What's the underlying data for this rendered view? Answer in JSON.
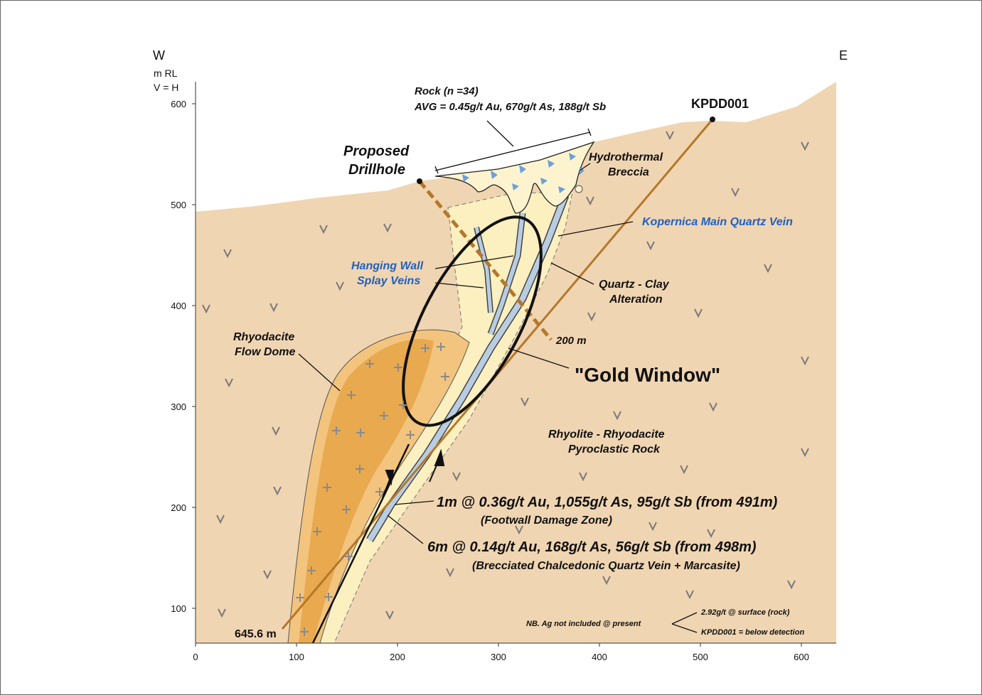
{
  "orientation": {
    "west": "W",
    "east": "E",
    "units": "m RL",
    "scale": "V = H"
  },
  "axes": {
    "x_ticks": [
      0,
      100,
      200,
      300,
      400,
      500,
      600
    ],
    "y_ticks": [
      100,
      200,
      300,
      400,
      500,
      600
    ]
  },
  "labels": {
    "rock_sample": [
      "Rock (n =34)",
      "AVG = 0.45g/t Au, 670g/t As, 188g/t Sb"
    ],
    "kpdd001": "KPDD001",
    "proposed_drillhole": [
      "Proposed",
      "Drillhole"
    ],
    "hydrothermal_breccia": [
      "Hydrothermal",
      "Breccia"
    ],
    "main_vein": "Kopernica Main Quartz Vein",
    "splay_veins": [
      "Hanging Wall",
      "Splay Veins"
    ],
    "alteration": [
      "Quartz - Clay",
      "Alteration"
    ],
    "proposed_depth": "200 m",
    "flow_dome": [
      "Rhyodacite",
      "Flow Dome"
    ],
    "gold_window": "\"Gold Window\"",
    "host_rock": [
      "Rhyolite - Rhyodacite",
      "Pyroclastic Rock"
    ],
    "intercept_1": [
      "1m @ 0.36g/t Au, 1,055g/t As, 95g/t Sb (from 491m)",
      "(Footwall Damage Zone)"
    ],
    "intercept_2": [
      "6m @ 0.14g/t Au, 168g/t As, 56g/t Sb (from 498m)",
      "(Brecciated Chalcedonic Quartz Vein + Marcasite)"
    ],
    "note": [
      "NB. Ag not included @ present",
      "2.92g/t @ surface (rock)",
      "KPDD001 = below detection"
    ],
    "hole_depth": "645.6 m"
  }
}
